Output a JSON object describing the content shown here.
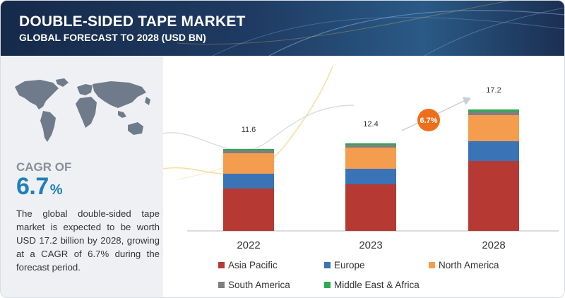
{
  "header": {
    "title": "DOUBLE-SIDED TAPE MARKET",
    "subtitle": "GLOBAL FORECAST TO 2028 (USD BN)"
  },
  "sidebar": {
    "cagr_label": "CAGR OF",
    "cagr_value": "6.7",
    "cagr_unit": "%",
    "description": "The global double-sided tape market is expected to be worth USD 17.2 billion by 2028, growing at a CAGR of 6.7% during the forecast period."
  },
  "chart_data": {
    "type": "bar",
    "stacked": true,
    "categories": [
      "2022",
      "2023",
      "2028"
    ],
    "totals": [
      "11.6",
      "12.4",
      "17.2"
    ],
    "cagr_badge": "6.7%",
    "series": [
      {
        "name": "Asia Pacific",
        "color": "#b63a33",
        "values": [
          6.0,
          6.6,
          9.9
        ]
      },
      {
        "name": "Europe",
        "color": "#3a73b6",
        "values": [
          2.1,
          2.2,
          2.8
        ]
      },
      {
        "name": "North America",
        "color": "#f59d4e",
        "values": [
          2.9,
          3.0,
          3.7
        ]
      },
      {
        "name": "South America",
        "color": "#7f7f7f",
        "values": [
          0.4,
          0.4,
          0.5
        ]
      },
      {
        "name": "Middle East & Africa",
        "color": "#2eaa52",
        "values": [
          0.2,
          0.2,
          0.3
        ]
      }
    ],
    "ylim": [
      0,
      17.2
    ],
    "grid": false,
    "legend_position": "bottom"
  }
}
